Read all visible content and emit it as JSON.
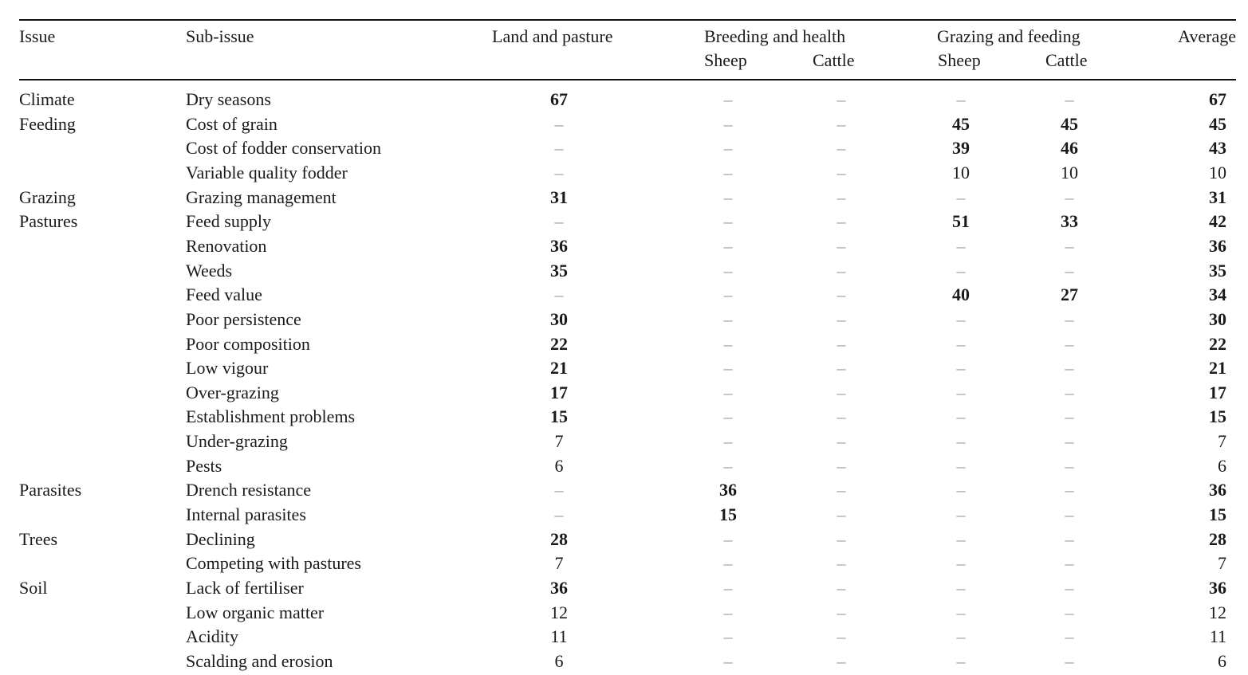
{
  "headers": {
    "issue": "Issue",
    "sub_issue": "Sub-issue",
    "land_pasture": "Land and pasture",
    "breeding_health": "Breeding and health",
    "grazing_feeding": "Grazing and feeding",
    "sheep": "Sheep",
    "cattle": "Cattle",
    "average": "Average"
  },
  "dash": "–",
  "rows": [
    {
      "issue": "Climate",
      "sub": "Dry seasons",
      "land": "67",
      "bs": "",
      "bc": "",
      "gs": "",
      "gc": "",
      "avg": "67",
      "bold": [
        "land",
        "avg"
      ]
    },
    {
      "issue": "Feeding",
      "sub": "Cost of grain",
      "land": "",
      "bs": "",
      "bc": "",
      "gs": "45",
      "gc": "45",
      "avg": "45",
      "bold": [
        "gs",
        "gc",
        "avg"
      ]
    },
    {
      "issue": "",
      "sub": "Cost of fodder conservation",
      "land": "",
      "bs": "",
      "bc": "",
      "gs": "39",
      "gc": "46",
      "avg": "43",
      "bold": [
        "gs",
        "gc",
        "avg"
      ]
    },
    {
      "issue": "",
      "sub": "Variable quality fodder",
      "land": "",
      "bs": "",
      "bc": "",
      "gs": "10",
      "gc": "10",
      "avg": "10",
      "bold": []
    },
    {
      "issue": "Grazing",
      "sub": "Grazing management",
      "land": "31",
      "bs": "",
      "bc": "",
      "gs": "",
      "gc": "",
      "avg": "31",
      "bold": [
        "land",
        "avg"
      ]
    },
    {
      "issue": "Pastures",
      "sub": "Feed supply",
      "land": "",
      "bs": "",
      "bc": "",
      "gs": "51",
      "gc": "33",
      "avg": "42",
      "bold": [
        "gs",
        "gc",
        "avg"
      ]
    },
    {
      "issue": "",
      "sub": "Renovation",
      "land": "36",
      "bs": "",
      "bc": "",
      "gs": "",
      "gc": "",
      "avg": "36",
      "bold": [
        "land",
        "avg"
      ]
    },
    {
      "issue": "",
      "sub": "Weeds",
      "land": "35",
      "bs": "",
      "bc": "",
      "gs": "",
      "gc": "",
      "avg": "35",
      "bold": [
        "land",
        "avg"
      ]
    },
    {
      "issue": "",
      "sub": "Feed value",
      "land": "",
      "bs": "",
      "bc": "",
      "gs": "40",
      "gc": "27",
      "avg": "34",
      "bold": [
        "gs",
        "gc",
        "avg"
      ]
    },
    {
      "issue": "",
      "sub": "Poor persistence",
      "land": "30",
      "bs": "",
      "bc": "",
      "gs": "",
      "gc": "",
      "avg": "30",
      "bold": [
        "land",
        "avg"
      ]
    },
    {
      "issue": "",
      "sub": "Poor composition",
      "land": "22",
      "bs": "",
      "bc": "",
      "gs": "",
      "gc": "",
      "avg": "22",
      "bold": [
        "land",
        "avg"
      ]
    },
    {
      "issue": "",
      "sub": "Low vigour",
      "land": "21",
      "bs": "",
      "bc": "",
      "gs": "",
      "gc": "",
      "avg": "21",
      "bold": [
        "land",
        "avg"
      ]
    },
    {
      "issue": "",
      "sub": "Over-grazing",
      "land": "17",
      "bs": "",
      "bc": "",
      "gs": "",
      "gc": "",
      "avg": "17",
      "bold": [
        "land",
        "avg"
      ]
    },
    {
      "issue": "",
      "sub": "Establishment problems",
      "land": "15",
      "bs": "",
      "bc": "",
      "gs": "",
      "gc": "",
      "avg": "15",
      "bold": [
        "land",
        "avg"
      ]
    },
    {
      "issue": "",
      "sub": "Under-grazing",
      "land": "7",
      "bs": "",
      "bc": "",
      "gs": "",
      "gc": "",
      "avg": "7",
      "bold": []
    },
    {
      "issue": "",
      "sub": "Pests",
      "land": "6",
      "bs": "",
      "bc": "",
      "gs": "",
      "gc": "",
      "avg": "6",
      "bold": []
    },
    {
      "issue": "Parasites",
      "sub": "Drench resistance",
      "land": "",
      "bs": "36",
      "bc": "",
      "gs": "",
      "gc": "",
      "avg": "36",
      "bold": [
        "bs",
        "avg"
      ]
    },
    {
      "issue": "",
      "sub": "Internal parasites",
      "land": "",
      "bs": "15",
      "bc": "",
      "gs": "",
      "gc": "",
      "avg": "15",
      "bold": [
        "bs",
        "avg"
      ]
    },
    {
      "issue": "Trees",
      "sub": "Declining",
      "land": "28",
      "bs": "",
      "bc": "",
      "gs": "",
      "gc": "",
      "avg": "28",
      "bold": [
        "land",
        "avg"
      ]
    },
    {
      "issue": "",
      "sub": "Competing with pastures",
      "land": "7",
      "bs": "",
      "bc": "",
      "gs": "",
      "gc": "",
      "avg": "7",
      "bold": []
    },
    {
      "issue": "Soil",
      "sub": "Lack of fertiliser",
      "land": "36",
      "bs": "",
      "bc": "",
      "gs": "",
      "gc": "",
      "avg": "36",
      "bold": [
        "land",
        "avg"
      ]
    },
    {
      "issue": "",
      "sub": "Low organic matter",
      "land": "12",
      "bs": "",
      "bc": "",
      "gs": "",
      "gc": "",
      "avg": "12",
      "bold": []
    },
    {
      "issue": "",
      "sub": "Acidity",
      "land": "11",
      "bs": "",
      "bc": "",
      "gs": "",
      "gc": "",
      "avg": "11",
      "bold": []
    },
    {
      "issue": "",
      "sub": "Scalding and erosion",
      "land": "6",
      "bs": "",
      "bc": "",
      "gs": "",
      "gc": "",
      "avg": "6",
      "bold": []
    }
  ]
}
